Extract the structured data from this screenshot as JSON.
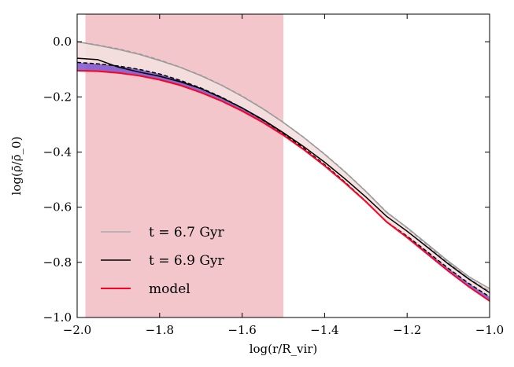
{
  "chart_data": {
    "type": "line",
    "xlabel": "log(r/R_vir)",
    "ylabel": "log(ρ̄/ρ̄_0)",
    "xlim": [
      -2.0,
      -1.0
    ],
    "ylim": [
      -1.0,
      0.1
    ],
    "x_ticks": [
      -2.0,
      -1.8,
      -1.6,
      -1.4,
      -1.2,
      -1.0
    ],
    "x_tick_labels": [
      "−2.0",
      "−1.8",
      "−1.6",
      "−1.4",
      "−1.2",
      "−1.0"
    ],
    "y_ticks": [
      0.0,
      -0.2,
      -0.4,
      -0.6,
      -0.8,
      -1.0
    ],
    "y_tick_labels": [
      "0.0",
      "−0.2",
      "−0.4",
      "−0.6",
      "−0.8",
      "−1.0"
    ],
    "shaded_region": {
      "x_range": [
        -1.98,
        -1.5
      ],
      "color": "#f2c6ca"
    },
    "x": [
      -2.0,
      -1.95,
      -1.9,
      -1.85,
      -1.8,
      -1.75,
      -1.7,
      -1.65,
      -1.6,
      -1.55,
      -1.5,
      -1.45,
      -1.4,
      -1.35,
      -1.3,
      -1.25,
      -1.2,
      -1.15,
      -1.1,
      -1.05,
      -1.0
    ],
    "series": [
      {
        "name": "t = 6.7 Gyr",
        "style": "solid",
        "color": "#9a9a9a",
        "values": [
          0.0,
          -0.013,
          -0.028,
          -0.046,
          -0.068,
          -0.093,
          -0.123,
          -0.158,
          -0.198,
          -0.243,
          -0.293,
          -0.348,
          -0.408,
          -0.473,
          -0.543,
          -0.618,
          -0.674,
          -0.735,
          -0.796,
          -0.852,
          -0.895
        ]
      },
      {
        "name": "t = 6.7 Gyr (dashed)",
        "style": "dashed",
        "color": "#9a9a9a",
        "values": [
          0.0,
          -0.012,
          -0.026,
          -0.044,
          -0.066,
          -0.092,
          -0.122,
          -0.157,
          -0.197,
          -0.242,
          -0.292,
          -0.347,
          -0.407,
          -0.472,
          -0.542,
          -0.617,
          -0.675,
          -0.738,
          -0.801,
          -0.859,
          -0.905
        ]
      },
      {
        "name": "t = 6.9 Gyr",
        "style": "solid",
        "color": "#000000",
        "values": [
          -0.06,
          -0.065,
          -0.092,
          -0.11,
          -0.125,
          -0.145,
          -0.17,
          -0.203,
          -0.24,
          -0.282,
          -0.33,
          -0.381,
          -0.437,
          -0.498,
          -0.563,
          -0.633,
          -0.687,
          -0.746,
          -0.806,
          -0.861,
          -0.91
        ]
      },
      {
        "name": "t = 6.9 Gyr (dashed)",
        "style": "dashed",
        "color": "#000000",
        "values": [
          -0.075,
          -0.08,
          -0.088,
          -0.1,
          -0.117,
          -0.14,
          -0.168,
          -0.201,
          -0.24,
          -0.284,
          -0.333,
          -0.387,
          -0.446,
          -0.51,
          -0.579,
          -0.653,
          -0.705,
          -0.763,
          -0.822,
          -0.877,
          -0.925
        ]
      },
      {
        "name": "model",
        "style": "solid",
        "color": "#ff0022",
        "values": [
          -0.105,
          -0.107,
          -0.113,
          -0.123,
          -0.138,
          -0.158,
          -0.184,
          -0.215,
          -0.251,
          -0.292,
          -0.339,
          -0.392,
          -0.45,
          -0.513,
          -0.58,
          -0.653,
          -0.71,
          -0.771,
          -0.832,
          -0.889,
          -0.94
        ]
      }
    ],
    "bands": [
      {
        "name": "light pink band",
        "color": "#f4dfdf",
        "upper_series": "t = 6.7 Gyr",
        "lower_series": "t = 6.9 Gyr (dashed)"
      },
      {
        "name": "purple band",
        "color": "#7b55cf",
        "upper_series": "t = 6.9 Gyr (dashed)",
        "lower_series": "model"
      }
    ],
    "legend": {
      "position": "lower-left",
      "entries": [
        {
          "label": "t = 6.7 Gyr",
          "color": "#aaaaaa"
        },
        {
          "label": "t = 6.9 Gyr",
          "color": "#000000"
        },
        {
          "label": "model",
          "color": "#ff0022"
        }
      ]
    }
  }
}
